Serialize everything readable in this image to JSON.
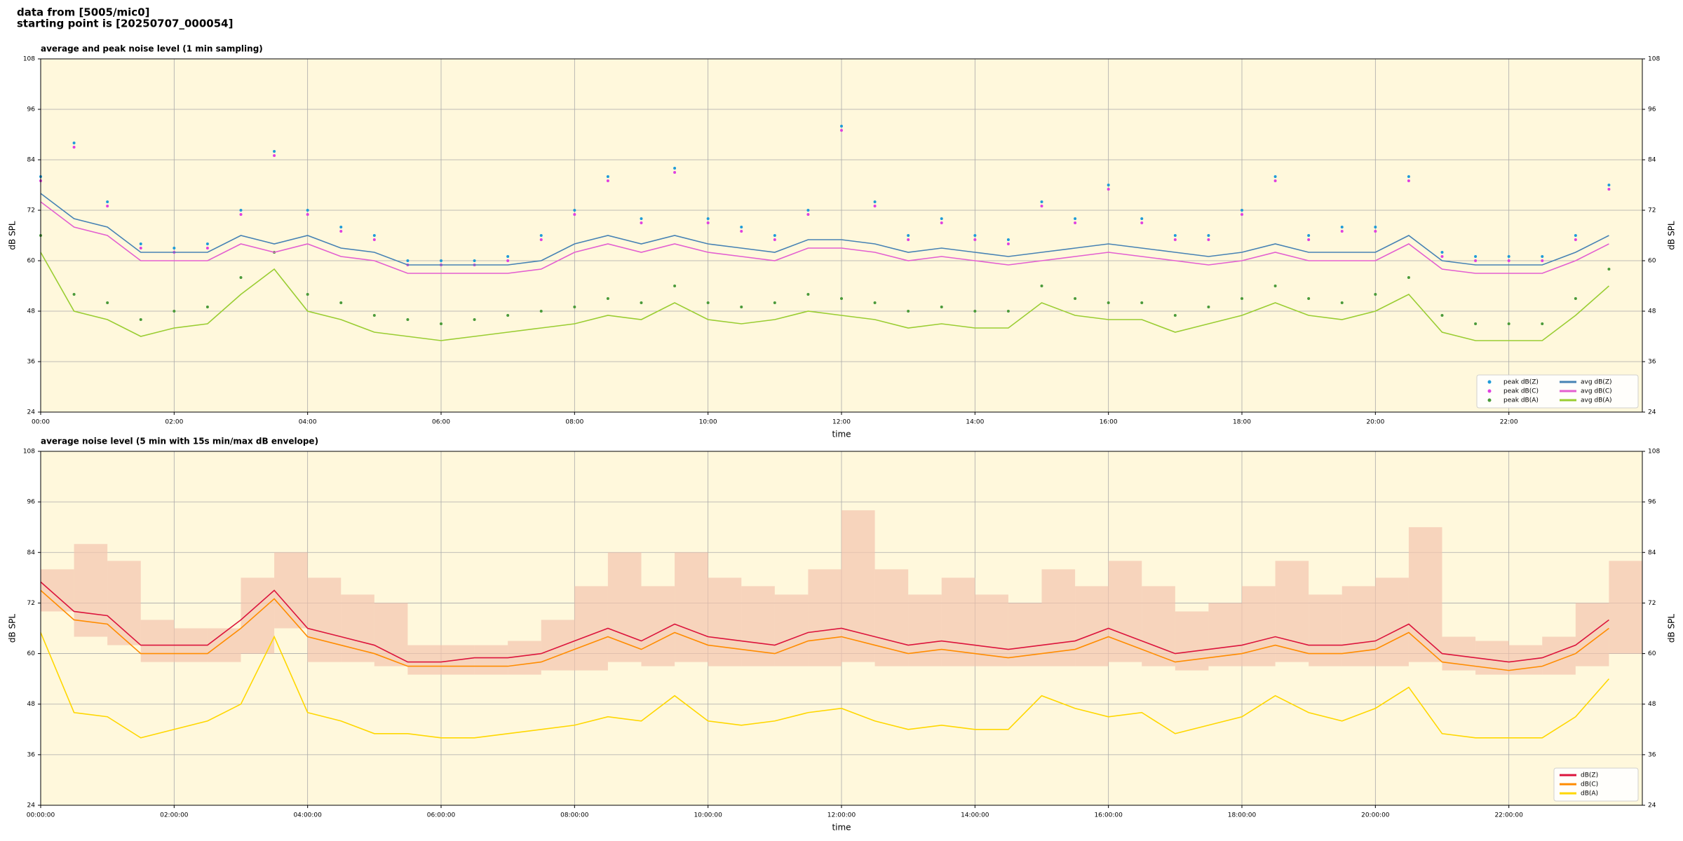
{
  "header": [
    "data from [5005/mic0]",
    "starting point is [20250707_000054]"
  ],
  "chart_data": [
    {
      "type": "line",
      "title": "average and peak noise level (1 min sampling)",
      "xlabel": "time",
      "ylabel": "dB SPL",
      "background": "#fff8dc",
      "grid": true,
      "legend": "lower right",
      "legend_ncol": 2,
      "xlim": [
        0,
        24
      ],
      "xticks": [
        {
          "value": 0,
          "label": "00:00"
        },
        {
          "value": 2,
          "label": "02:00"
        },
        {
          "value": 4,
          "label": "04:00"
        },
        {
          "value": 6,
          "label": "06:00"
        },
        {
          "value": 8,
          "label": "08:00"
        },
        {
          "value": 10,
          "label": "10:00"
        },
        {
          "value": 12,
          "label": "12:00"
        },
        {
          "value": 14,
          "label": "14:00"
        },
        {
          "value": 16,
          "label": "16:00"
        },
        {
          "value": 18,
          "label": "18:00"
        },
        {
          "value": 20,
          "label": "20:00"
        },
        {
          "value": 22,
          "label": "22:00"
        }
      ],
      "ylim": [
        24,
        108
      ],
      "yticks": [
        24,
        36,
        48,
        60,
        72,
        84,
        96,
        108
      ],
      "x": [
        0,
        0.5,
        1,
        1.5,
        2,
        2.5,
        3,
        3.5,
        4,
        4.5,
        5,
        5.5,
        6,
        6.5,
        7,
        7.5,
        8,
        8.5,
        9,
        9.5,
        10,
        10.5,
        11,
        11.5,
        12,
        12.5,
        13,
        13.5,
        14,
        14.5,
        15,
        15.5,
        16,
        16.5,
        17,
        17.5,
        18,
        18.5,
        19,
        19.5,
        20,
        20.5,
        21,
        21.5,
        22,
        22.5,
        23,
        23.5
      ],
      "series": [
        {
          "name": "peak dB(Z)",
          "color": "#1f9bd8",
          "style": "points",
          "values": [
            80,
            88,
            74,
            64,
            63,
            64,
            72,
            86,
            72,
            68,
            66,
            60,
            60,
            60,
            61,
            66,
            72,
            80,
            70,
            82,
            70,
            68,
            66,
            72,
            92,
            74,
            66,
            70,
            66,
            65,
            74,
            70,
            78,
            70,
            66,
            66,
            72,
            80,
            66,
            68,
            68,
            80,
            62,
            61,
            61,
            61,
            66,
            78
          ]
        },
        {
          "name": "peak dB(C)",
          "color": "#e040e0",
          "style": "points",
          "values": [
            79,
            87,
            73,
            63,
            62,
            63,
            71,
            85,
            71,
            67,
            65,
            59,
            59,
            59,
            60,
            65,
            71,
            79,
            69,
            81,
            69,
            67,
            65,
            71,
            91,
            73,
            65,
            69,
            65,
            64,
            73,
            69,
            77,
            69,
            65,
            65,
            71,
            79,
            65,
            67,
            67,
            79,
            61,
            60,
            60,
            60,
            65,
            77
          ]
        },
        {
          "name": "peak dB(A)",
          "color": "#4a9a3a",
          "style": "points",
          "values": [
            66,
            52,
            50,
            46,
            48,
            49,
            56,
            62,
            52,
            50,
            47,
            46,
            45,
            46,
            47,
            48,
            49,
            51,
            50,
            54,
            50,
            49,
            50,
            52,
            51,
            50,
            48,
            49,
            48,
            48,
            54,
            51,
            50,
            50,
            47,
            49,
            51,
            54,
            51,
            50,
            52,
            56,
            47,
            45,
            45,
            45,
            51,
            58
          ]
        },
        {
          "name": "avg dB(Z)",
          "color": "#4682b4",
          "style": "line",
          "values": [
            76,
            70,
            68,
            62,
            62,
            62,
            66,
            64,
            66,
            63,
            62,
            59,
            59,
            59,
            59,
            60,
            64,
            66,
            64,
            66,
            64,
            63,
            62,
            65,
            65,
            64,
            62,
            63,
            62,
            61,
            62,
            63,
            64,
            63,
            62,
            61,
            62,
            64,
            62,
            62,
            62,
            66,
            60,
            59,
            59,
            59,
            62,
            66
          ]
        },
        {
          "name": "avg dB(C)",
          "color": "#e35fd0",
          "style": "line",
          "values": [
            74,
            68,
            66,
            60,
            60,
            60,
            64,
            62,
            64,
            61,
            60,
            57,
            57,
            57,
            57,
            58,
            62,
            64,
            62,
            64,
            62,
            61,
            60,
            63,
            63,
            62,
            60,
            61,
            60,
            59,
            60,
            61,
            62,
            61,
            60,
            59,
            60,
            62,
            60,
            60,
            60,
            64,
            58,
            57,
            57,
            57,
            60,
            64
          ]
        },
        {
          "name": "avg dB(A)",
          "color": "#9acd32",
          "style": "line",
          "values": [
            62,
            48,
            46,
            42,
            44,
            45,
            52,
            58,
            48,
            46,
            43,
            42,
            41,
            42,
            43,
            44,
            45,
            47,
            46,
            50,
            46,
            45,
            46,
            48,
            47,
            46,
            44,
            45,
            44,
            44,
            50,
            47,
            46,
            46,
            43,
            45,
            47,
            50,
            47,
            46,
            48,
            52,
            43,
            41,
            41,
            41,
            47,
            54
          ]
        }
      ]
    },
    {
      "type": "line",
      "title": "average noise level (5 min with 15s min/max dB envelope)",
      "xlabel": "time",
      "ylabel": "dB SPL",
      "background": "#fff8dc",
      "grid": true,
      "legend": "lower right",
      "legend_ncol": 1,
      "xlim": [
        0,
        24
      ],
      "xticks": [
        {
          "value": 0,
          "label": "00:00:00"
        },
        {
          "value": 2,
          "label": "02:00:00"
        },
        {
          "value": 4,
          "label": "04:00:00"
        },
        {
          "value": 6,
          "label": "06:00:00"
        },
        {
          "value": 8,
          "label": "08:00:00"
        },
        {
          "value": 10,
          "label": "10:00:00"
        },
        {
          "value": 12,
          "label": "12:00:00"
        },
        {
          "value": 14,
          "label": "14:00:00"
        },
        {
          "value": 16,
          "label": "16:00:00"
        },
        {
          "value": 18,
          "label": "18:00:00"
        },
        {
          "value": 20,
          "label": "20:00:00"
        },
        {
          "value": 22,
          "label": "22:00:00"
        }
      ],
      "ylim": [
        24,
        108
      ],
      "yticks": [
        24,
        36,
        48,
        60,
        72,
        84,
        96,
        108
      ],
      "x": [
        0,
        0.5,
        1,
        1.5,
        2,
        2.5,
        3,
        3.5,
        4,
        4.5,
        5,
        5.5,
        6,
        6.5,
        7,
        7.5,
        8,
        8.5,
        9,
        9.5,
        10,
        10.5,
        11,
        11.5,
        12,
        12.5,
        13,
        13.5,
        14,
        14.5,
        15,
        15.5,
        16,
        16.5,
        17,
        17.5,
        18,
        18.5,
        19,
        19.5,
        20,
        20.5,
        21,
        21.5,
        22,
        22.5,
        23,
        23.5
      ],
      "envelope": {
        "color": "#f4c4ae",
        "low": [
          70,
          64,
          62,
          58,
          58,
          58,
          60,
          66,
          58,
          58,
          57,
          55,
          55,
          55,
          55,
          56,
          56,
          58,
          57,
          58,
          57,
          57,
          57,
          57,
          58,
          57,
          57,
          57,
          57,
          57,
          57,
          57,
          58,
          57,
          56,
          57,
          57,
          58,
          57,
          57,
          57,
          58,
          56,
          55,
          55,
          55,
          57,
          60
        ],
        "high": [
          80,
          86,
          82,
          68,
          66,
          66,
          78,
          84,
          78,
          74,
          72,
          62,
          62,
          62,
          63,
          68,
          76,
          84,
          76,
          84,
          78,
          76,
          74,
          80,
          94,
          80,
          74,
          78,
          74,
          72,
          80,
          76,
          82,
          76,
          70,
          72,
          76,
          82,
          74,
          76,
          78,
          90,
          64,
          63,
          62,
          64,
          72,
          82
        ]
      },
      "series": [
        {
          "name": "dB(Z)",
          "color": "#dc143c",
          "style": "line",
          "values": [
            77,
            70,
            69,
            62,
            62,
            62,
            68,
            75,
            66,
            64,
            62,
            58,
            58,
            59,
            59,
            60,
            63,
            66,
            63,
            67,
            64,
            63,
            62,
            65,
            66,
            64,
            62,
            63,
            62,
            61,
            62,
            63,
            66,
            63,
            60,
            61,
            62,
            64,
            62,
            62,
            63,
            67,
            60,
            59,
            58,
            59,
            62,
            68
          ]
        },
        {
          "name": "dB(C)",
          "color": "#ff8c00",
          "style": "line",
          "values": [
            75,
            68,
            67,
            60,
            60,
            60,
            66,
            73,
            64,
            62,
            60,
            57,
            57,
            57,
            57,
            58,
            61,
            64,
            61,
            65,
            62,
            61,
            60,
            63,
            64,
            62,
            60,
            61,
            60,
            59,
            60,
            61,
            64,
            61,
            58,
            59,
            60,
            62,
            60,
            60,
            61,
            65,
            58,
            57,
            56,
            57,
            60,
            66
          ]
        },
        {
          "name": "dB(A)",
          "color": "#ffd700",
          "style": "line",
          "values": [
            65,
            46,
            45,
            40,
            42,
            44,
            48,
            64,
            46,
            44,
            41,
            41,
            40,
            40,
            41,
            42,
            43,
            45,
            44,
            50,
            44,
            43,
            44,
            46,
            47,
            44,
            42,
            43,
            42,
            42,
            50,
            47,
            45,
            46,
            41,
            43,
            45,
            50,
            46,
            44,
            47,
            52,
            41,
            40,
            40,
            40,
            45,
            54
          ]
        }
      ]
    }
  ]
}
